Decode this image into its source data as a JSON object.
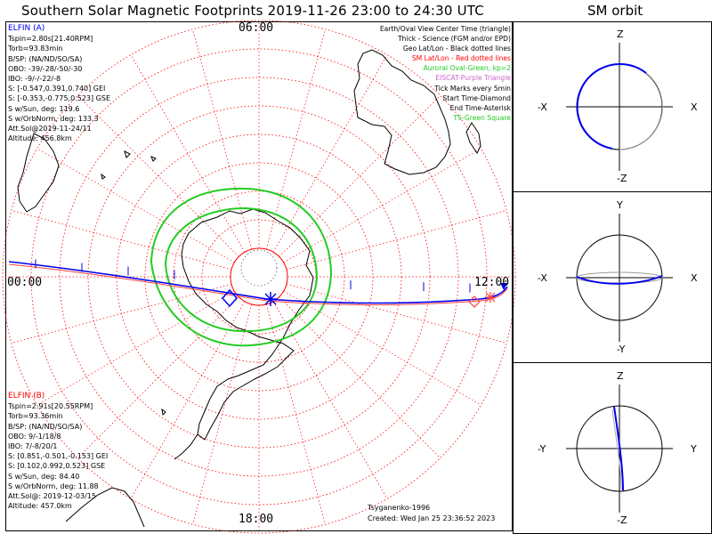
{
  "title": "Southern Solar Magnetic Footprints 2019-11-26 23:00 to 24:30 UTC",
  "orbit_title": "SM orbit",
  "colors": {
    "elfin_a": "#0000ee",
    "elfin_b": "#ff4040",
    "auroral_oval": "#22cc22",
    "grid": "#ff0000",
    "coast": "#000000"
  },
  "elfin_a": {
    "name": "ELFIN (A)",
    "lines": [
      "Tspin=2.80s[21.40RPM]",
      "Torb=93.83min",
      "B/SP: (NA/ND/SO/SA)",
      "OBO: -39/-28/-50/-30",
      "IBO: -9/-/-22/-8",
      "S: [-0.547,0.391,0.740] GEI",
      "S: [-0.353,-0.775,0.523] GSE",
      "S w/Sun, deg: 119.6",
      "S w/OrbNorm, deg: 133.3",
      "Att.Sol@2019-11-24/11",
      "Altitude: 456.8km"
    ]
  },
  "elfin_b": {
    "name": "ELFIN (B)",
    "lines": [
      "Tspin=2.91s[20.55RPM]",
      "Torb=93.36min",
      "B/SP: (NA/ND/SO/SA)",
      "OBO: 9/-1/18/8",
      "IBO: 7/-8/20/1",
      "S: [0.851,-0.501,-0.153] GEI",
      "S: [0.102,0.992,0.523] GSE",
      "S w/Sun, deg: 84.40",
      "S w/OrbNorm, deg: 11.88",
      "Att.Sol@: 2019-12-03/15",
      "Altitude: 457.0km"
    ]
  },
  "legend": [
    {
      "text": "Earth/Oval View Center Time (triangle)",
      "color": "black"
    },
    {
      "text": "Thick - Science (FGM and/or EPD)",
      "color": "black"
    },
    {
      "text": "Geo Lat/Lon - Black dotted lines",
      "color": "black"
    },
    {
      "text": "SM Lat/Lon - Red dotted lines",
      "color": "red"
    },
    {
      "text": "Auroral Oval-Green, kp=2",
      "color": "green"
    },
    {
      "text": "EISCAT-Purple Triangle",
      "color": "purple"
    },
    {
      "text": "Tick Marks every 5min",
      "color": "black"
    },
    {
      "text": "Start Time-Diamond",
      "color": "black"
    },
    {
      "text": "End Time-Asterisk",
      "color": "black"
    },
    {
      "text": "TS-Green Square",
      "color": "green"
    }
  ],
  "mlt_labels": {
    "top": "06:00",
    "left": "00:00",
    "right": "12:00",
    "bottom": "18:00"
  },
  "credits": {
    "author": "Tsyganenko-1996",
    "created": "Created: Wed Jan 25 23:36:52 2023"
  },
  "orbit_panels": [
    {
      "top": "Z",
      "bottom": "-Z",
      "left": "-X",
      "right": "X"
    },
    {
      "top": "Y",
      "bottom": "-Y",
      "left": "-X",
      "right": "X"
    },
    {
      "top": "Z",
      "bottom": "-Z",
      "left": "-Y",
      "right": "Y"
    }
  ],
  "chart_data": {
    "type": "polar-map",
    "projection": "south polar, solar-magnetic coordinates",
    "time_range": [
      "2019-11-26 23:00",
      "2019-11-26 24:30"
    ],
    "mlt_ticks": [
      "00:00",
      "06:00",
      "12:00",
      "18:00"
    ],
    "sm_lat_circles_deg": [
      -80,
      -70,
      -60,
      -50,
      -40,
      -30,
      -20,
      -10,
      0
    ],
    "auroral_oval_kp": 2,
    "tick_interval_min": 5,
    "series": [
      {
        "name": "ELFIN (A)",
        "track": "footprint",
        "start_marker": "diamond",
        "end_marker": "asterisk"
      },
      {
        "name": "ELFIN (B)",
        "track": "footprint",
        "start_marker": "diamond",
        "end_marker": "asterisk"
      }
    ]
  }
}
